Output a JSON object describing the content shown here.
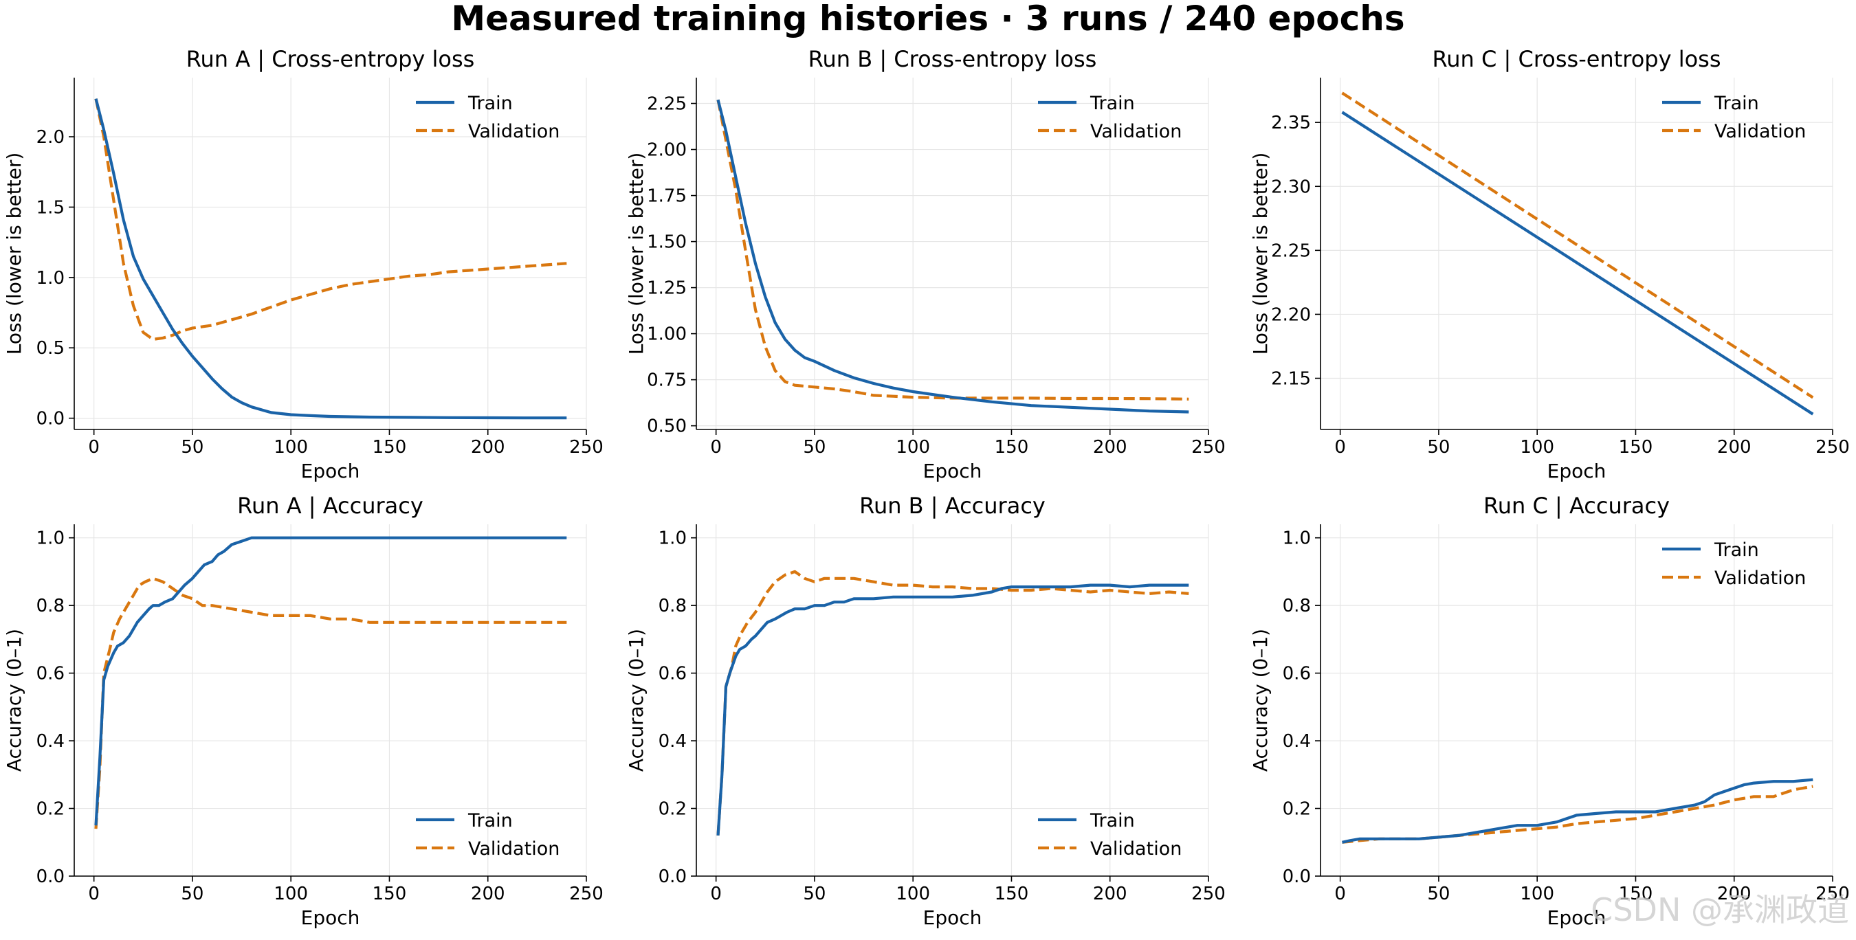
{
  "figure": {
    "title": "Measured training histories · 3 runs / 240 epochs",
    "watermark": "CSDN @承渊政道"
  },
  "colors": {
    "train": "#1a63a8",
    "validation": "#d9770f"
  },
  "chart_data": [
    {
      "type": "line",
      "title": "Run A | Cross-entropy loss",
      "xlabel": "Epoch",
      "ylabel": "Loss (lower is better)",
      "xlim": [
        -10,
        250
      ],
      "ylim": [
        -0.08,
        2.42
      ],
      "xticks": [
        0,
        50,
        100,
        150,
        200,
        250
      ],
      "xtick_labels": [
        "0",
        "50",
        "100",
        "150",
        "200",
        "250"
      ],
      "yticks": [
        0.0,
        0.5,
        1.0,
        1.5,
        2.0
      ],
      "ytick_labels": [
        "0.0",
        "0.5",
        "1.0",
        "1.5",
        "2.0"
      ],
      "grid": true,
      "legend": "top-right",
      "series": [
        {
          "name": "Train",
          "style": "solid",
          "x": [
            1,
            5,
            10,
            15,
            20,
            25,
            30,
            35,
            40,
            45,
            50,
            55,
            60,
            65,
            70,
            75,
            80,
            90,
            100,
            110,
            120,
            140,
            160,
            180,
            200,
            220,
            240
          ],
          "y": [
            2.27,
            2.05,
            1.74,
            1.41,
            1.15,
            0.99,
            0.87,
            0.75,
            0.63,
            0.53,
            0.44,
            0.36,
            0.28,
            0.21,
            0.15,
            0.11,
            0.08,
            0.04,
            0.025,
            0.018,
            0.013,
            0.008,
            0.006,
            0.004,
            0.003,
            0.002,
            0.002
          ]
        },
        {
          "name": "Validation",
          "style": "dashed",
          "x": [
            1,
            5,
            10,
            15,
            20,
            25,
            30,
            35,
            40,
            45,
            50,
            60,
            70,
            80,
            90,
            100,
            110,
            120,
            130,
            140,
            150,
            160,
            170,
            180,
            190,
            200,
            210,
            220,
            230,
            240
          ],
          "y": [
            2.27,
            2.0,
            1.55,
            1.1,
            0.8,
            0.61,
            0.56,
            0.57,
            0.59,
            0.62,
            0.64,
            0.66,
            0.7,
            0.74,
            0.79,
            0.84,
            0.88,
            0.92,
            0.95,
            0.97,
            0.99,
            1.01,
            1.02,
            1.04,
            1.05,
            1.06,
            1.07,
            1.08,
            1.09,
            1.1
          ]
        }
      ]
    },
    {
      "type": "line",
      "title": "Run B | Cross-entropy loss",
      "xlabel": "Epoch",
      "ylabel": "Loss (lower is better)",
      "xlim": [
        -10,
        250
      ],
      "ylim": [
        0.48,
        2.39
      ],
      "xticks": [
        0,
        50,
        100,
        150,
        200,
        250
      ],
      "xtick_labels": [
        "0",
        "50",
        "100",
        "150",
        "200",
        "250"
      ],
      "yticks": [
        0.5,
        0.75,
        1.0,
        1.25,
        1.5,
        1.75,
        2.0,
        2.25
      ],
      "ytick_labels": [
        "0.50",
        "0.75",
        "1.00",
        "1.25",
        "1.50",
        "1.75",
        "2.00",
        "2.25"
      ],
      "grid": true,
      "legend": "top-right",
      "series": [
        {
          "name": "Train",
          "style": "solid",
          "x": [
            1,
            5,
            10,
            15,
            20,
            25,
            30,
            35,
            40,
            45,
            50,
            60,
            70,
            80,
            90,
            100,
            110,
            120,
            140,
            160,
            180,
            200,
            220,
            240
          ],
          "y": [
            2.27,
            2.1,
            1.85,
            1.6,
            1.38,
            1.2,
            1.06,
            0.97,
            0.91,
            0.87,
            0.85,
            0.8,
            0.76,
            0.73,
            0.705,
            0.685,
            0.67,
            0.655,
            0.63,
            0.61,
            0.6,
            0.59,
            0.58,
            0.575
          ]
        },
        {
          "name": "Validation",
          "style": "dashed",
          "x": [
            1,
            5,
            10,
            15,
            20,
            25,
            30,
            35,
            40,
            45,
            50,
            60,
            70,
            80,
            90,
            100,
            120,
            140,
            160,
            180,
            200,
            220,
            240
          ],
          "y": [
            2.27,
            2.05,
            1.78,
            1.45,
            1.13,
            0.93,
            0.8,
            0.74,
            0.72,
            0.715,
            0.71,
            0.7,
            0.685,
            0.665,
            0.66,
            0.655,
            0.65,
            0.65,
            0.65,
            0.648,
            0.648,
            0.647,
            0.645
          ]
        }
      ]
    },
    {
      "type": "line",
      "title": "Run C | Cross-entropy loss",
      "xlabel": "Epoch",
      "ylabel": "Loss (lower is better)",
      "xlim": [
        -10,
        250
      ],
      "ylim": [
        2.11,
        2.385
      ],
      "xticks": [
        0,
        50,
        100,
        150,
        200,
        250
      ],
      "xtick_labels": [
        "0",
        "50",
        "100",
        "150",
        "200",
        "250"
      ],
      "yticks": [
        2.15,
        2.2,
        2.25,
        2.3,
        2.35
      ],
      "ytick_labels": [
        "2.15",
        "2.20",
        "2.25",
        "2.30",
        "2.35"
      ],
      "grid": true,
      "legend": "top-right",
      "series": [
        {
          "name": "Train",
          "style": "solid",
          "x": [
            1,
            240
          ],
          "y": [
            2.358,
            2.122
          ]
        },
        {
          "name": "Validation",
          "style": "dashed",
          "x": [
            1,
            240
          ],
          "y": [
            2.373,
            2.135
          ]
        }
      ]
    },
    {
      "type": "line",
      "title": "Run A | Accuracy",
      "xlabel": "Epoch",
      "ylabel": "Accuracy (0–1)",
      "xlim": [
        -10,
        250
      ],
      "ylim": [
        0.0,
        1.04
      ],
      "xticks": [
        0,
        50,
        100,
        150,
        200,
        250
      ],
      "xtick_labels": [
        "0",
        "50",
        "100",
        "150",
        "200",
        "250"
      ],
      "yticks": [
        0.0,
        0.2,
        0.4,
        0.6,
        0.8,
        1.0
      ],
      "ytick_labels": [
        "0.0",
        "0.2",
        "0.4",
        "0.6",
        "0.8",
        "1.0"
      ],
      "grid": true,
      "legend": "bottom-right",
      "series": [
        {
          "name": "Train",
          "style": "solid",
          "x": [
            1,
            3,
            5,
            7,
            10,
            12,
            15,
            18,
            20,
            22,
            25,
            28,
            30,
            33,
            36,
            40,
            43,
            46,
            50,
            53,
            56,
            60,
            63,
            66,
            70,
            75,
            80,
            100,
            150,
            200,
            240
          ],
          "y": [
            0.15,
            0.35,
            0.58,
            0.62,
            0.66,
            0.68,
            0.69,
            0.71,
            0.73,
            0.75,
            0.77,
            0.79,
            0.8,
            0.8,
            0.81,
            0.82,
            0.84,
            0.86,
            0.88,
            0.9,
            0.92,
            0.93,
            0.95,
            0.96,
            0.98,
            0.99,
            1.0,
            1.0,
            1.0,
            1.0,
            1.0
          ]
        },
        {
          "name": "Validation",
          "style": "dashed",
          "x": [
            1,
            3,
            5,
            8,
            10,
            13,
            16,
            20,
            23,
            26,
            30,
            35,
            40,
            45,
            50,
            55,
            60,
            70,
            80,
            90,
            100,
            110,
            120,
            130,
            140,
            160,
            180,
            200,
            220,
            240
          ],
          "y": [
            0.14,
            0.32,
            0.6,
            0.67,
            0.72,
            0.76,
            0.79,
            0.83,
            0.86,
            0.87,
            0.88,
            0.87,
            0.85,
            0.83,
            0.82,
            0.8,
            0.8,
            0.79,
            0.78,
            0.77,
            0.77,
            0.77,
            0.76,
            0.76,
            0.75,
            0.75,
            0.75,
            0.75,
            0.75,
            0.75
          ]
        }
      ]
    },
    {
      "type": "line",
      "title": "Run B | Accuracy",
      "xlabel": "Epoch",
      "ylabel": "Accuracy (0–1)",
      "xlim": [
        -10,
        250
      ],
      "ylim": [
        0.0,
        1.04
      ],
      "xticks": [
        0,
        50,
        100,
        150,
        200,
        250
      ],
      "xtick_labels": [
        "0",
        "50",
        "100",
        "150",
        "200",
        "250"
      ],
      "yticks": [
        0.0,
        0.2,
        0.4,
        0.6,
        0.8,
        1.0
      ],
      "ytick_labels": [
        "0.0",
        "0.2",
        "0.4",
        "0.6",
        "0.8",
        "1.0"
      ],
      "grid": true,
      "legend": "bottom-right",
      "series": [
        {
          "name": "Train",
          "style": "solid",
          "x": [
            1,
            3,
            5,
            7,
            10,
            12,
            15,
            18,
            20,
            23,
            26,
            30,
            33,
            36,
            40,
            45,
            50,
            55,
            60,
            65,
            70,
            80,
            90,
            100,
            110,
            120,
            130,
            140,
            145,
            150,
            160,
            170,
            180,
            190,
            200,
            210,
            220,
            230,
            240
          ],
          "y": [
            0.12,
            0.3,
            0.56,
            0.6,
            0.65,
            0.67,
            0.68,
            0.7,
            0.71,
            0.73,
            0.75,
            0.76,
            0.77,
            0.78,
            0.79,
            0.79,
            0.8,
            0.8,
            0.81,
            0.81,
            0.82,
            0.82,
            0.825,
            0.825,
            0.825,
            0.825,
            0.83,
            0.84,
            0.85,
            0.855,
            0.855,
            0.855,
            0.855,
            0.86,
            0.86,
            0.855,
            0.86,
            0.86,
            0.86
          ]
        },
        {
          "name": "Validation",
          "style": "dashed",
          "x": [
            1,
            3,
            5,
            8,
            10,
            13,
            16,
            20,
            23,
            26,
            30,
            35,
            40,
            45,
            50,
            55,
            60,
            70,
            80,
            90,
            100,
            110,
            120,
            130,
            140,
            150,
            160,
            170,
            180,
            190,
            200,
            210,
            220,
            230,
            240
          ],
          "y": [
            0.12,
            0.3,
            0.56,
            0.62,
            0.68,
            0.72,
            0.75,
            0.78,
            0.81,
            0.84,
            0.87,
            0.89,
            0.9,
            0.88,
            0.87,
            0.88,
            0.88,
            0.88,
            0.87,
            0.86,
            0.86,
            0.855,
            0.855,
            0.85,
            0.85,
            0.845,
            0.845,
            0.85,
            0.845,
            0.84,
            0.845,
            0.84,
            0.835,
            0.84,
            0.835
          ]
        }
      ]
    },
    {
      "type": "line",
      "title": "Run C | Accuracy",
      "xlabel": "Epoch",
      "ylabel": "Accuracy (0–1)",
      "xlim": [
        -10,
        250
      ],
      "ylim": [
        0.0,
        1.04
      ],
      "xticks": [
        0,
        50,
        100,
        150,
        200,
        250
      ],
      "xtick_labels": [
        "0",
        "50",
        "100",
        "150",
        "200",
        "250"
      ],
      "yticks": [
        0.0,
        0.2,
        0.4,
        0.6,
        0.8,
        1.0
      ],
      "ytick_labels": [
        "0.0",
        "0.2",
        "0.4",
        "0.6",
        "0.8",
        "1.0"
      ],
      "grid": true,
      "legend": "top-right",
      "series": [
        {
          "name": "Train",
          "style": "solid",
          "x": [
            1,
            5,
            10,
            20,
            30,
            40,
            50,
            60,
            70,
            80,
            90,
            100,
            110,
            115,
            120,
            130,
            140,
            150,
            160,
            170,
            180,
            185,
            190,
            195,
            200,
            205,
            210,
            220,
            230,
            240
          ],
          "y": [
            0.1,
            0.105,
            0.11,
            0.11,
            0.11,
            0.11,
            0.115,
            0.12,
            0.13,
            0.14,
            0.15,
            0.15,
            0.16,
            0.17,
            0.18,
            0.185,
            0.19,
            0.19,
            0.19,
            0.2,
            0.21,
            0.22,
            0.24,
            0.25,
            0.26,
            0.27,
            0.275,
            0.28,
            0.28,
            0.285
          ]
        },
        {
          "name": "Validation",
          "style": "dashed",
          "x": [
            1,
            10,
            20,
            30,
            40,
            50,
            60,
            70,
            80,
            90,
            100,
            110,
            120,
            130,
            140,
            150,
            160,
            170,
            180,
            190,
            200,
            210,
            220,
            230,
            240
          ],
          "y": [
            0.1,
            0.105,
            0.11,
            0.11,
            0.11,
            0.115,
            0.12,
            0.125,
            0.13,
            0.135,
            0.14,
            0.145,
            0.155,
            0.16,
            0.165,
            0.17,
            0.18,
            0.19,
            0.2,
            0.21,
            0.225,
            0.235,
            0.235,
            0.255,
            0.265
          ]
        }
      ]
    }
  ]
}
